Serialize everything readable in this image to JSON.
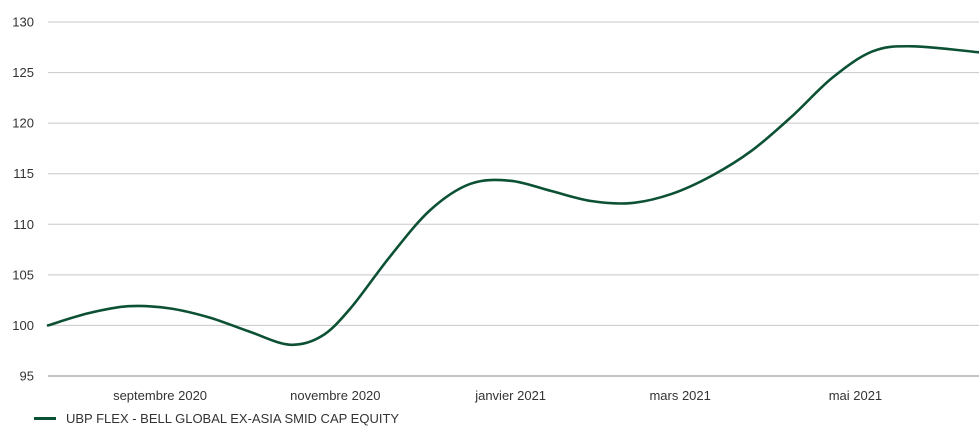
{
  "chart_data": {
    "type": "line",
    "title": "",
    "xlabel": "",
    "ylabel": "",
    "ylim": [
      95,
      130
    ],
    "yticks": [
      95,
      100,
      105,
      110,
      115,
      120,
      125,
      130
    ],
    "xlim": [
      "2020-07-24",
      "2021-06-13"
    ],
    "xticks": [
      {
        "date": "2020-09-01",
        "label": "septembre 2020"
      },
      {
        "date": "2020-11-01",
        "label": "novembre 2020"
      },
      {
        "date": "2021-01-01",
        "label": "janvier 2021"
      },
      {
        "date": "2021-03-01",
        "label": "mars 2021"
      },
      {
        "date": "2021-05-01",
        "label": "mai 2021"
      }
    ],
    "grid": true,
    "legend_placement": "bottom-left",
    "series": [
      {
        "name": "UBP FLEX - BELL GLOBAL EX-ASIA SMID CAP EQUITY",
        "color": "#0c5134",
        "x": [
          "2020-07-24",
          "2020-08-07",
          "2020-08-21",
          "2020-09-04",
          "2020-09-18",
          "2020-10-02",
          "2020-10-16",
          "2020-10-27",
          "2020-11-06",
          "2020-11-20",
          "2020-12-04",
          "2020-12-18",
          "2021-01-01",
          "2021-01-15",
          "2021-01-29",
          "2021-02-12",
          "2021-02-26",
          "2021-03-12",
          "2021-03-26",
          "2021-04-09",
          "2021-04-23",
          "2021-05-07",
          "2021-05-21",
          "2021-06-13"
        ],
        "values": [
          100.0,
          101.2,
          101.9,
          101.7,
          100.8,
          99.4,
          98.1,
          98.9,
          101.6,
          106.8,
          111.4,
          114.0,
          114.3,
          113.3,
          112.3,
          112.1,
          113.0,
          114.8,
          117.3,
          120.7,
          124.5,
          127.1,
          127.6,
          127.0
        ]
      }
    ]
  }
}
